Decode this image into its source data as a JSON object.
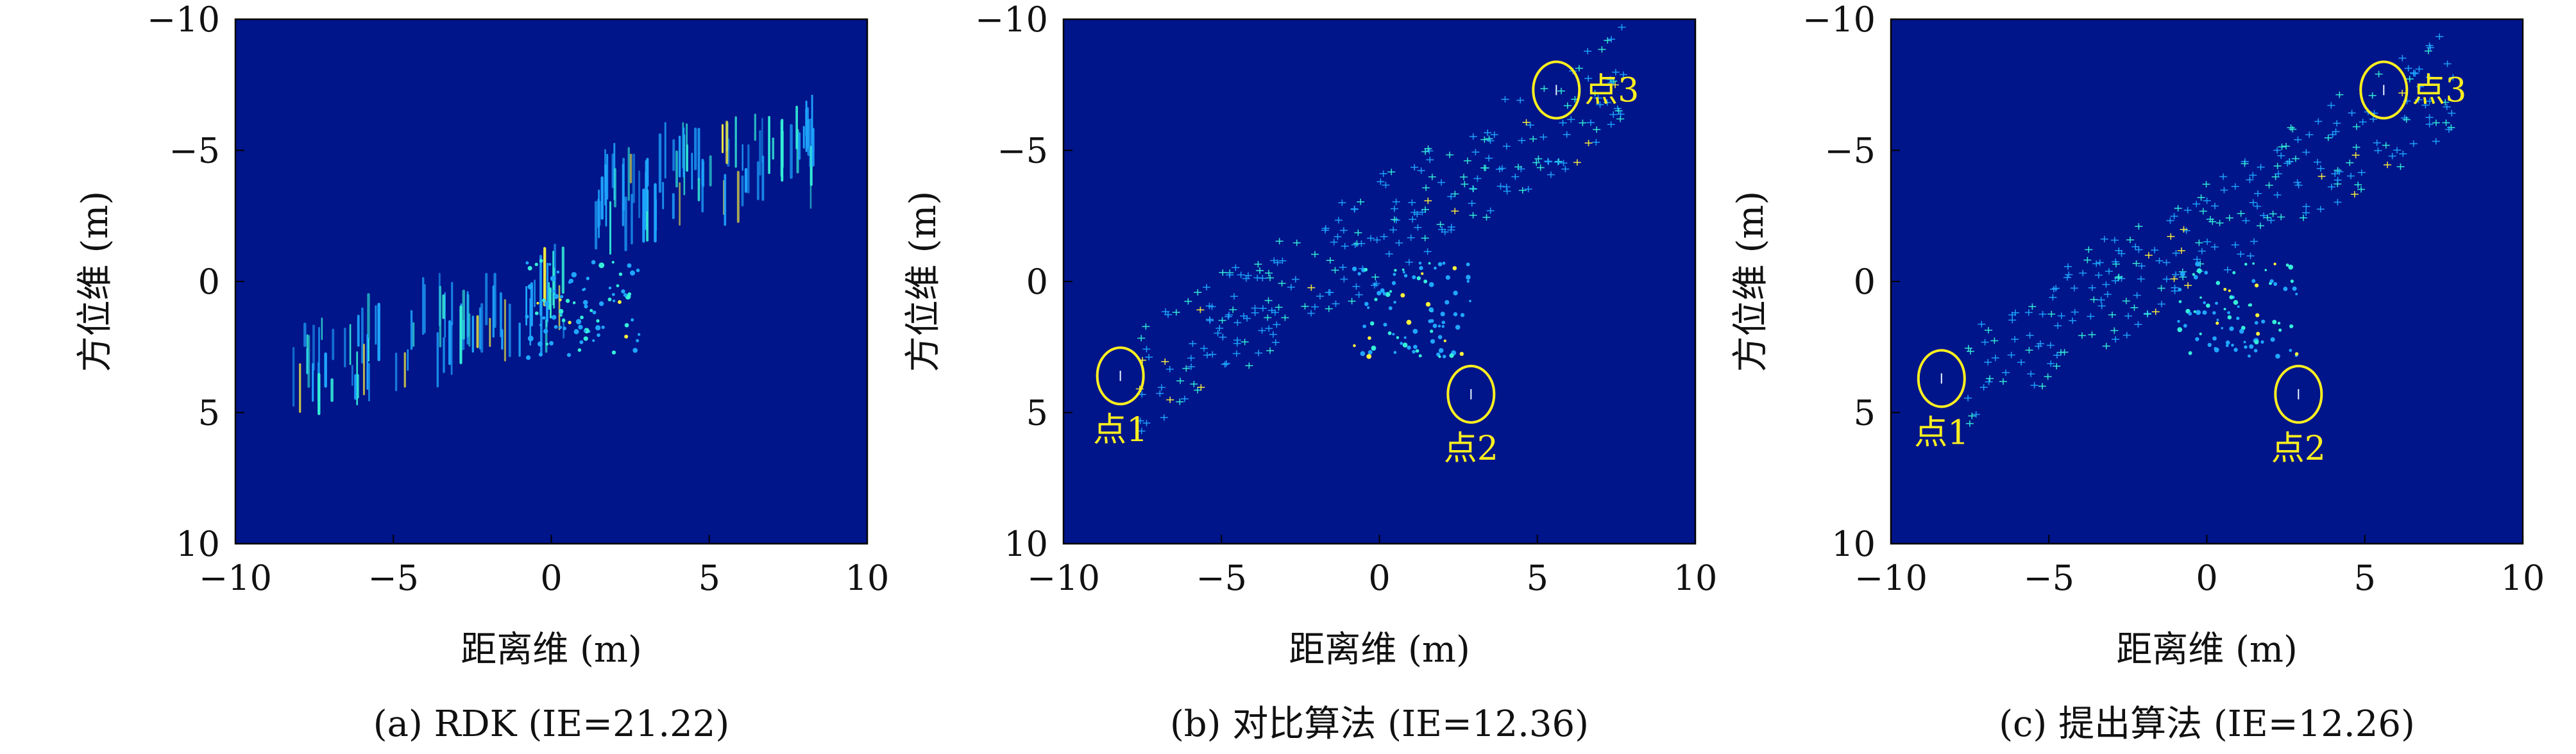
{
  "colors": {
    "background": "#00158a",
    "annotation": "#ffef1f",
    "speckle_low": "#1fa6ff",
    "speckle_mid": "#35f0d8",
    "speckle_high": "#fff23b"
  },
  "chart_data": [
    {
      "type": "heatmap",
      "caption": "(a) RDK (IE=21.22)",
      "xlabel": "距离维 (m)",
      "ylabel": "方位维 (m)",
      "xlim": [
        -10,
        10
      ],
      "ylim": [
        -10,
        10
      ],
      "y_inverted": true,
      "xticks": [
        "−10",
        "−5",
        "0",
        "5",
        "10"
      ],
      "yticks": [
        "−10",
        "−5",
        "0",
        "5",
        "10"
      ],
      "image_entropy": 21.22,
      "colormap": "jet",
      "annotations": []
    },
    {
      "type": "heatmap",
      "caption": "(b) 对比算法 (IE=12.36)",
      "xlabel": "距离维 (m)",
      "ylabel": "方位维 (m)",
      "xlim": [
        -10,
        10
      ],
      "ylim": [
        -10,
        10
      ],
      "y_inverted": true,
      "xticks": [
        "−10",
        "−5",
        "0",
        "5",
        "10"
      ],
      "yticks": [
        "−10",
        "−5",
        "0",
        "5",
        "10"
      ],
      "image_entropy": 12.36,
      "colormap": "jet",
      "annotations": [
        {
          "label": "点1",
          "x": -8.2,
          "y": 3.6
        },
        {
          "label": "点2",
          "x": 2.9,
          "y": 4.3
        },
        {
          "label": "点3",
          "x": 5.6,
          "y": -7.3
        }
      ]
    },
    {
      "type": "heatmap",
      "caption": "(c) 提出算法 (IE=12.26)",
      "xlabel": "距离维 (m)",
      "ylabel": "方位维 (m)",
      "xlim": [
        -10,
        10
      ],
      "ylim": [
        -10,
        10
      ],
      "y_inverted": true,
      "xticks": [
        "−10",
        "−5",
        "0",
        "5",
        "10"
      ],
      "yticks": [
        "−10",
        "−5",
        "0",
        "5",
        "10"
      ],
      "image_entropy": 12.26,
      "colormap": "jet",
      "annotations": [
        {
          "label": "点1",
          "x": -8.4,
          "y": 3.7
        },
        {
          "label": "点2",
          "x": 2.9,
          "y": 4.3
        },
        {
          "label": "点3",
          "x": 5.6,
          "y": -7.3
        }
      ]
    }
  ]
}
